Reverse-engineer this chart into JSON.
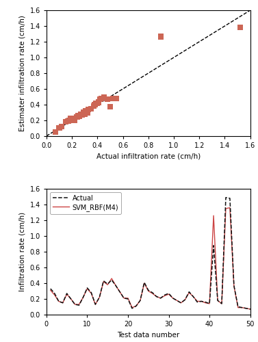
{
  "scatter_actual": [
    0.07,
    0.1,
    0.12,
    0.15,
    0.17,
    0.18,
    0.19,
    0.2,
    0.22,
    0.24,
    0.25,
    0.26,
    0.27,
    0.28,
    0.29,
    0.3,
    0.31,
    0.32,
    0.33,
    0.35,
    0.37,
    0.38,
    0.39,
    0.4,
    0.41,
    0.42,
    0.43,
    0.45,
    0.48,
    0.5,
    0.52,
    0.55,
    0.9,
    1.52
  ],
  "scatter_estimated": [
    0.05,
    0.1,
    0.12,
    0.18,
    0.19,
    0.2,
    0.22,
    0.22,
    0.2,
    0.24,
    0.26,
    0.25,
    0.28,
    0.27,
    0.3,
    0.28,
    0.32,
    0.3,
    0.34,
    0.35,
    0.38,
    0.4,
    0.42,
    0.42,
    0.43,
    0.47,
    0.48,
    0.49,
    0.47,
    0.37,
    0.48,
    0.48,
    1.265,
    1.38
  ],
  "scatter_color": "#cc6655",
  "scatter_marker": "s",
  "scatter_size": 35,
  "diag_line": [
    0.0,
    1.6
  ],
  "scatter_xlim": [
    0.0,
    1.6
  ],
  "scatter_ylim": [
    0.0,
    1.6
  ],
  "scatter_xlabel": "Actual infiltration rate (cm/h)",
  "scatter_ylabel": "Estimater infiltration rate (cm/h)",
  "scatter_xticks": [
    0.0,
    0.2,
    0.4,
    0.6,
    0.8,
    1.0,
    1.2,
    1.4,
    1.6
  ],
  "scatter_yticks": [
    0.0,
    0.2,
    0.4,
    0.6,
    0.8,
    1.0,
    1.2,
    1.4,
    1.6
  ],
  "line_xlabel": "Test data number",
  "line_ylabel": "Infiltration rate (cm/h)",
  "line_xlim": [
    0,
    50
  ],
  "line_ylim": [
    0.0,
    1.6
  ],
  "line_xticks": [
    0,
    10,
    20,
    30,
    40,
    50
  ],
  "line_yticks": [
    0.0,
    0.2,
    0.4,
    0.6,
    0.8,
    1.0,
    1.2,
    1.4,
    1.6
  ],
  "actual_color": "#111111",
  "svm_color": "#cc4444",
  "legend_actual": "Actual",
  "legend_svm": "SVM_RBF(M4)",
  "actual_values": [
    0.33,
    0.27,
    0.17,
    0.15,
    0.27,
    0.2,
    0.13,
    0.12,
    0.22,
    0.34,
    0.28,
    0.13,
    0.22,
    0.43,
    0.39,
    0.44,
    0.37,
    0.29,
    0.21,
    0.2,
    0.08,
    0.11,
    0.18,
    0.41,
    0.31,
    0.28,
    0.23,
    0.21,
    0.25,
    0.27,
    0.21,
    0.18,
    0.15,
    0.19,
    0.29,
    0.23,
    0.16,
    0.17,
    0.16,
    0.14,
    0.88,
    0.18,
    0.14,
    1.49,
    1.48,
    0.37,
    0.1,
    0.09,
    0.08,
    0.07
  ],
  "svm_values": [
    0.31,
    0.25,
    0.17,
    0.15,
    0.26,
    0.2,
    0.13,
    0.13,
    0.22,
    0.33,
    0.27,
    0.13,
    0.22,
    0.42,
    0.38,
    0.46,
    0.37,
    0.29,
    0.21,
    0.21,
    0.09,
    0.11,
    0.18,
    0.4,
    0.3,
    0.27,
    0.23,
    0.21,
    0.24,
    0.26,
    0.21,
    0.18,
    0.15,
    0.19,
    0.28,
    0.23,
    0.17,
    0.17,
    0.15,
    0.14,
    1.26,
    0.18,
    0.14,
    1.35,
    1.36,
    0.36,
    0.09,
    0.09,
    0.08,
    0.07
  ]
}
